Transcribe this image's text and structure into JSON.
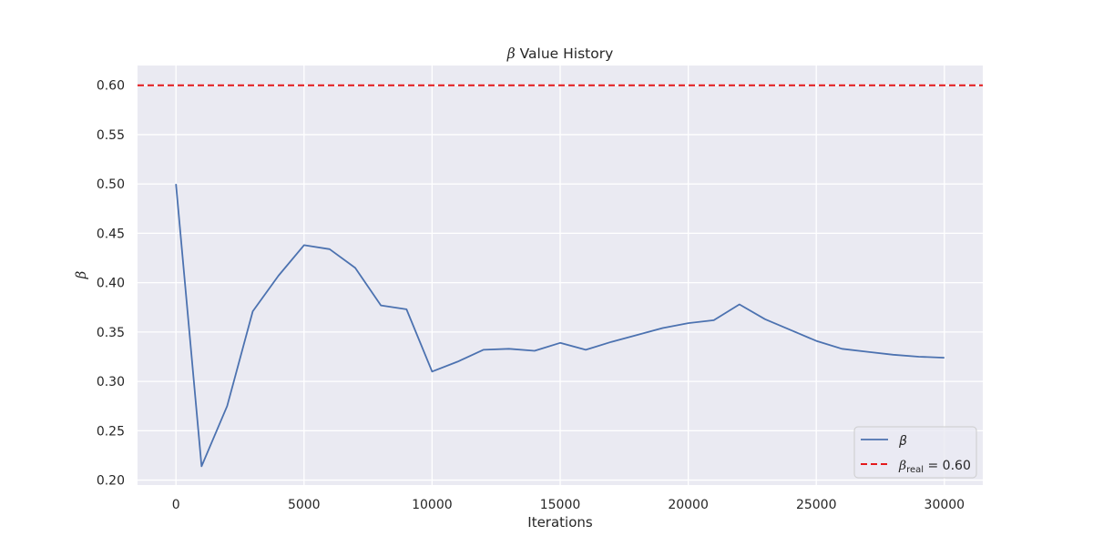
{
  "chart_data": {
    "type": "line",
    "title": "β Value History",
    "title_symbol": "β",
    "title_text": " Value History",
    "xlabel": "Iterations",
    "ylabel": "β",
    "xlim": [
      -1500,
      31500
    ],
    "ylim": [
      0.195,
      0.62
    ],
    "xticks": [
      0,
      5000,
      10000,
      15000,
      20000,
      25000,
      30000
    ],
    "yticks": [
      0.2,
      0.25,
      0.3,
      0.35,
      0.4,
      0.45,
      0.5,
      0.55,
      0.6
    ],
    "grid": true,
    "legend_position": "bottom-right",
    "series": [
      {
        "name": "β",
        "style": "solid",
        "color": "#4c72b0",
        "x": [
          0,
          1000,
          2000,
          3000,
          4000,
          5000,
          6000,
          7000,
          8000,
          9000,
          10000,
          11000,
          12000,
          13000,
          14000,
          15000,
          16000,
          17000,
          18000,
          19000,
          20000,
          21000,
          22000,
          23000,
          24000,
          25000,
          26000,
          27000,
          28000,
          29000,
          30000
        ],
        "y": [
          0.5,
          0.214,
          0.275,
          0.371,
          0.407,
          0.438,
          0.434,
          0.415,
          0.377,
          0.373,
          0.31,
          0.32,
          0.332,
          0.333,
          0.331,
          0.339,
          0.332,
          0.34,
          0.347,
          0.354,
          0.359,
          0.362,
          0.378,
          0.363,
          0.352,
          0.341,
          0.333,
          0.33,
          0.327,
          0.325,
          0.324
        ]
      }
    ],
    "reference_line": {
      "name": "βreal = 0.60",
      "symbol": "β",
      "subscript": "real",
      "suffix": " = 0.60",
      "y": 0.6,
      "style": "dashed",
      "color": "#e41a1c"
    },
    "colors": {
      "plot_background": "#eaeaf2",
      "grid": "#ffffff",
      "text": "#262626",
      "legend_border": "#cccccc"
    }
  }
}
